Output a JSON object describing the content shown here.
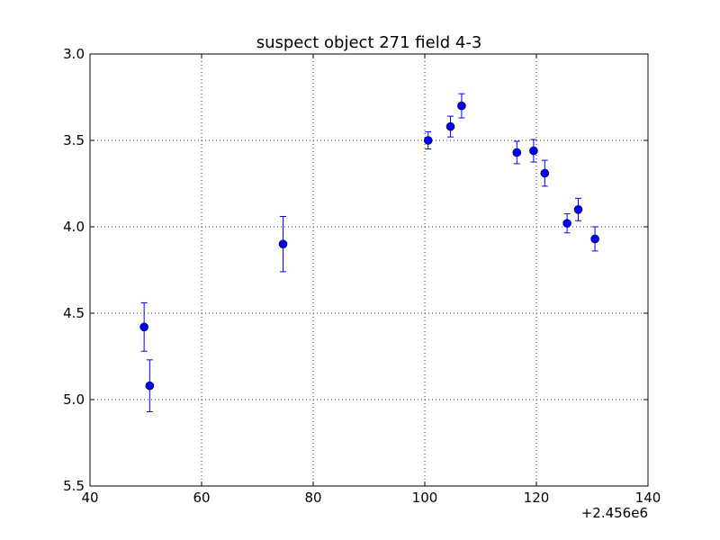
{
  "chart_data": {
    "type": "scatter",
    "title": "suspect object 271 field 4-3",
    "xlabel": "",
    "ylabel": "",
    "x_offset_label": "+2.456e6",
    "xlim": [
      40,
      140
    ],
    "ylim": [
      5.5,
      3.0
    ],
    "y_inverted": true,
    "grid": true,
    "legend": "none",
    "x_ticks": [
      "40",
      "60",
      "80",
      "100",
      "120",
      "140"
    ],
    "y_ticks": [
      "3.0",
      "3.5",
      "4.0",
      "4.5",
      "5.0",
      "5.5"
    ],
    "marker_color": "#0000ff",
    "points": [
      {
        "x": 49.7,
        "y": 4.58,
        "err": 0.14
      },
      {
        "x": 50.7,
        "y": 4.92,
        "err": 0.15
      },
      {
        "x": 74.6,
        "y": 4.1,
        "err": 0.16
      },
      {
        "x": 100.6,
        "y": 3.5,
        "err": 0.05
      },
      {
        "x": 104.6,
        "y": 3.42,
        "err": 0.06
      },
      {
        "x": 106.6,
        "y": 3.3,
        "err": 0.07
      },
      {
        "x": 116.5,
        "y": 3.57,
        "err": 0.065
      },
      {
        "x": 119.5,
        "y": 3.56,
        "err": 0.065
      },
      {
        "x": 121.5,
        "y": 3.69,
        "err": 0.075
      },
      {
        "x": 125.5,
        "y": 3.98,
        "err": 0.055
      },
      {
        "x": 127.5,
        "y": 3.9,
        "err": 0.065
      },
      {
        "x": 130.5,
        "y": 4.07,
        "err": 0.07
      }
    ]
  }
}
